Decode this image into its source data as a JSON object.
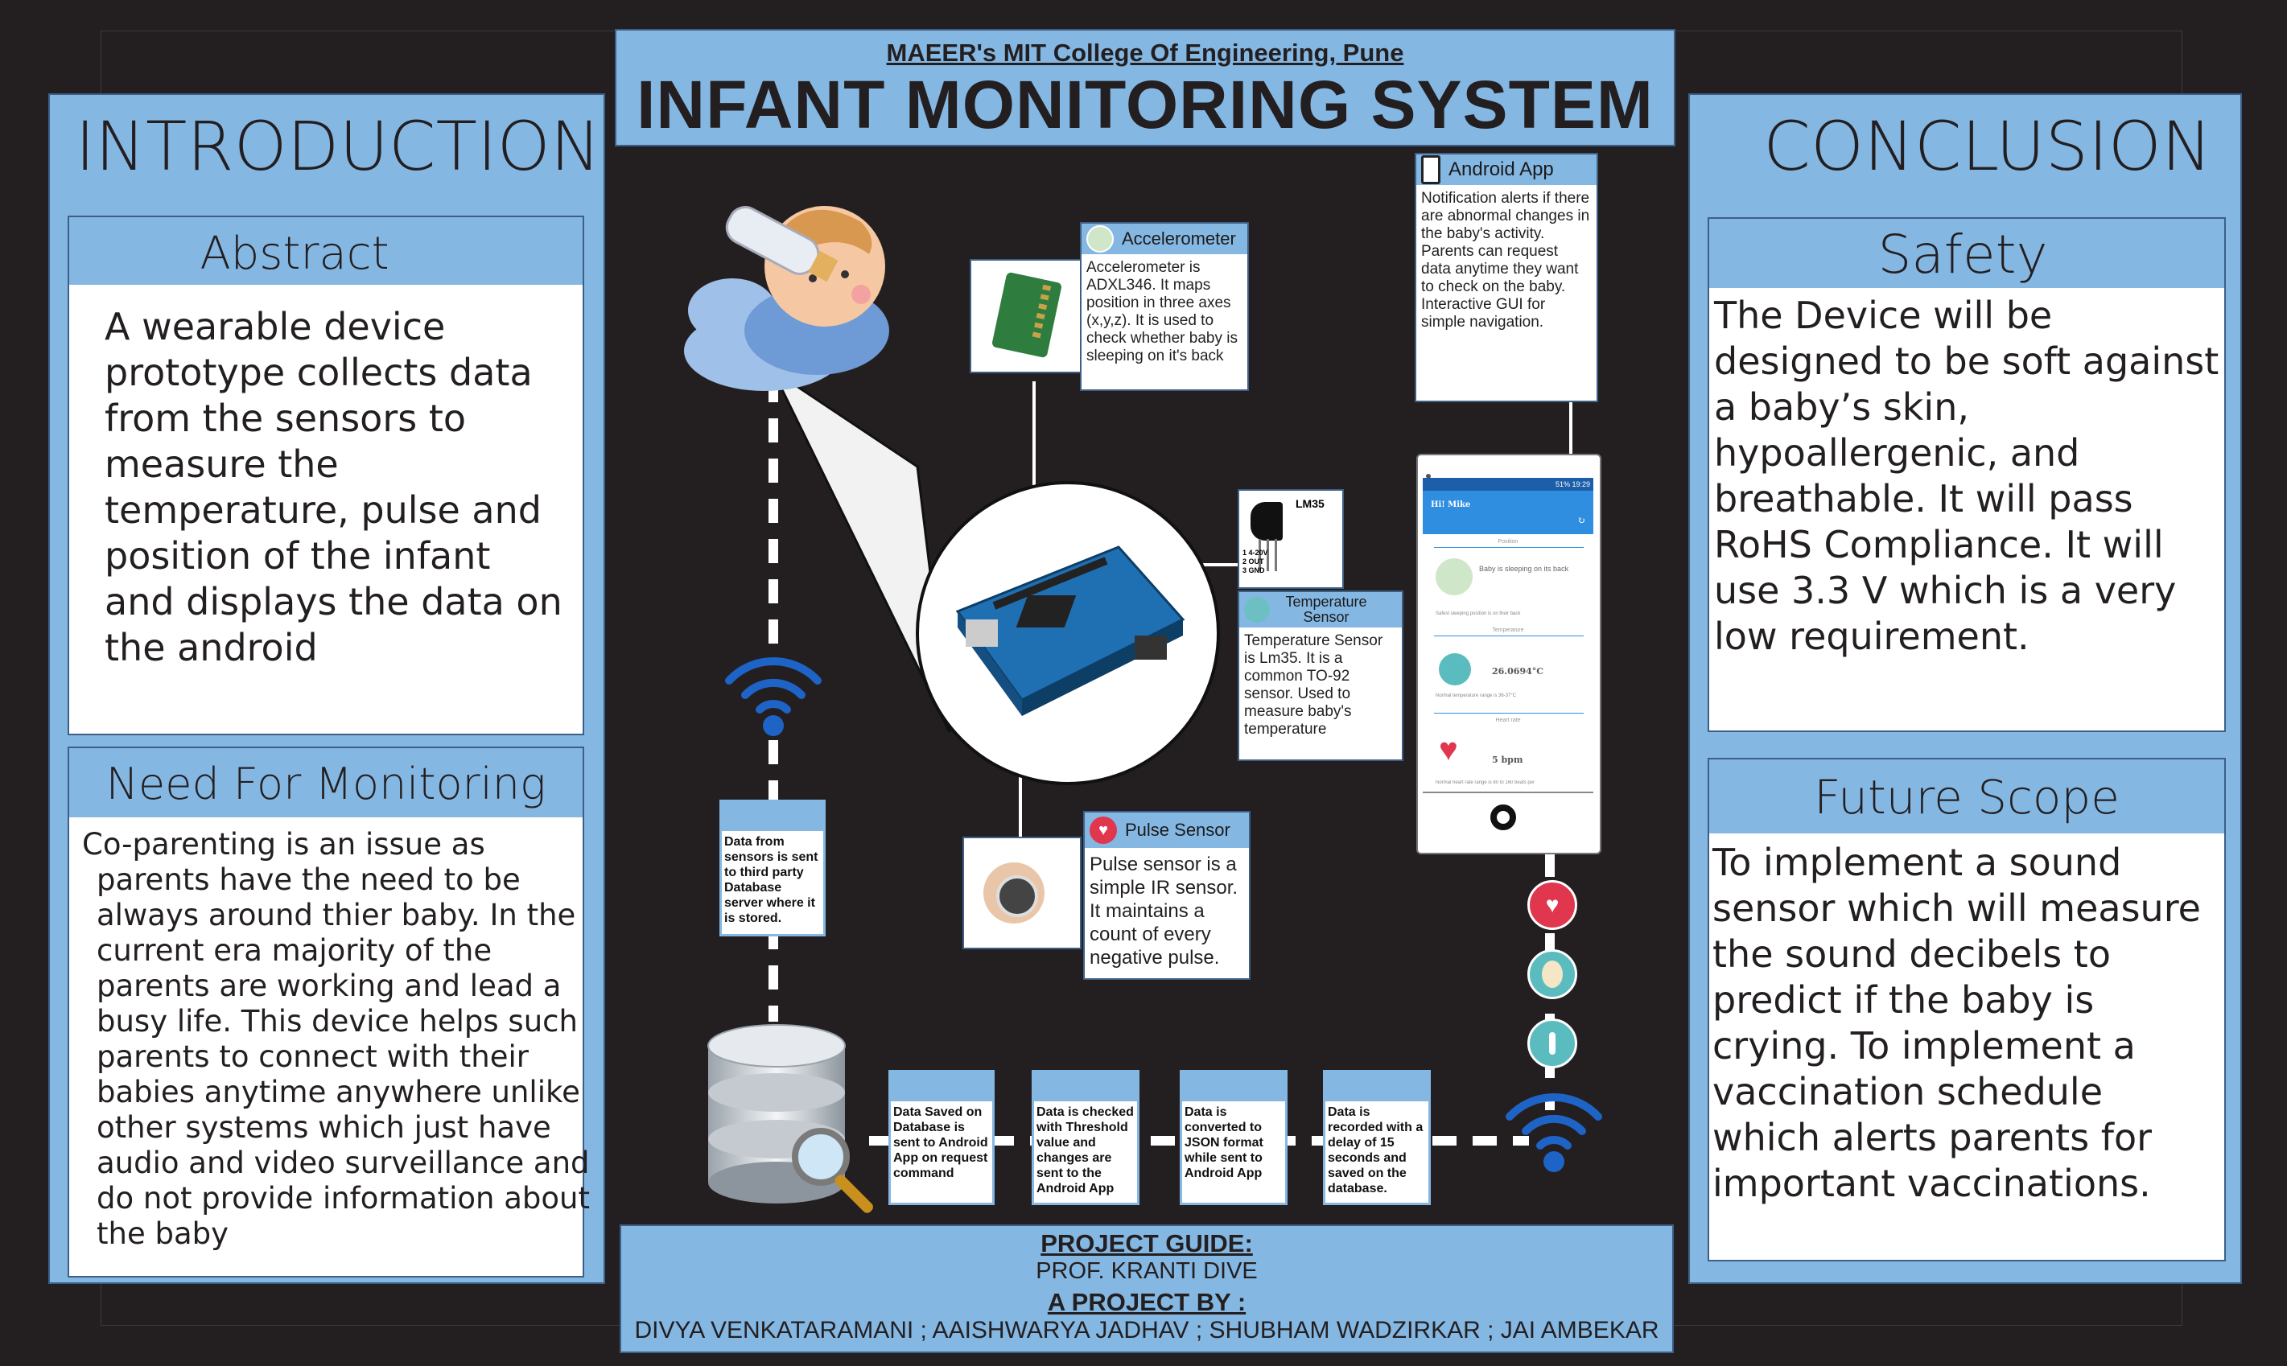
{
  "header": {
    "college": "MAEER's MIT College Of Engineering, Pune",
    "title": "INFANT MONITORING SYSTEM"
  },
  "introduction": {
    "heading": "INTRODUCTION",
    "abstract": {
      "heading": "Abstract",
      "text": "A wearable device prototype collects data from the sensors to measure the temperature, pulse and position of the infant and displays the data on the android"
    },
    "need": {
      "heading": "Need For Monitoring",
      "text": "Co-parenting is an issue as parents have the need to be always around thier baby. In the current era  majority of the parents are working and lead a busy life. This device helps such parents to connect with their babies anytime anywhere unlike other systems which just have audio and video surveillance and do not provide information about the baby"
    }
  },
  "conclusion": {
    "heading": "CONCLUSION",
    "safety": {
      "heading": "Safety",
      "text": "The Device will be designed to be soft against a baby’s skin, hypoallergenic, and breathable. It will pass RoHS Compliance. It will use 3.3 V which is a very low requirement."
    },
    "future": {
      "heading": "Future Scope",
      "text": " To implement a sound sensor which will measure the sound decibels to predict if the baby is crying. To implement a vaccination schedule which alerts parents for important vaccinations."
    }
  },
  "diagram": {
    "accelerometer": {
      "heading": "Accelerometer",
      "text": "Accelerometer is ADXL346. It maps position in three axes (x,y,z). It is used to check whether baby is sleeping on it's back"
    },
    "android": {
      "heading": "Android App",
      "text": "Notification alerts if there are abnormal changes in the baby's activity. Parents can request data anytime they want to check on the baby. Interactive GUI for simple navigation."
    },
    "temperature": {
      "heading": "Temperature Sensor",
      "text": "Temperature Sensor is Lm35. It is a common TO-92 sensor. Used to measure baby's temperature",
      "chip_label": "LM35",
      "pins": "1 4-20V\n2 OUT\n3 GND"
    },
    "pulse": {
      "heading": "Pulse Sensor",
      "text": "Pulse sensor is a simple IR sensor. It maintains a count of every negative pulse."
    },
    "server_note": "Data from sensors is sent to third party Database server where it is stored.",
    "flow": [
      "Data Saved on Database is sent to Android App on request command",
      "Data is checked with Threshold value and changes are sent to the Android App",
      "Data is converted to JSON format while sent to Android App",
      "Data is recorded with a delay of 15 seconds and saved on the database."
    ],
    "phone": {
      "status": "51% 19:29",
      "greeting": "Hi! Mike",
      "position_label": "Position",
      "position_value": "Baby is sleeping on its back",
      "position_note": "Safest sleeping position is on their back",
      "temperature_label": "Temperature",
      "temperature_value": "26.0694°C",
      "temperature_note": "Normal temperature range is 36-37°C",
      "heart_label": "Heart rate",
      "heart_value": "5 bpm",
      "heart_note": "Normal heart rate range is 80 to 160 beats per"
    }
  },
  "footer": {
    "guide_label": "PROJECT GUIDE:",
    "guide_name": "PROF. KRANTI DIVE",
    "by_label": "A PROJECT BY :",
    "members": "DIVYA VENKATARAMANI ; AAISHWARYA JADHAV ; SHUBHAM WADZIRKAR ; JAI AMBEKAR"
  },
  "colors": {
    "background": "#231f20",
    "panel_blue": "#85b7e3",
    "wifi_blue": "#1e63c6",
    "alert_red": "#e0364e"
  }
}
